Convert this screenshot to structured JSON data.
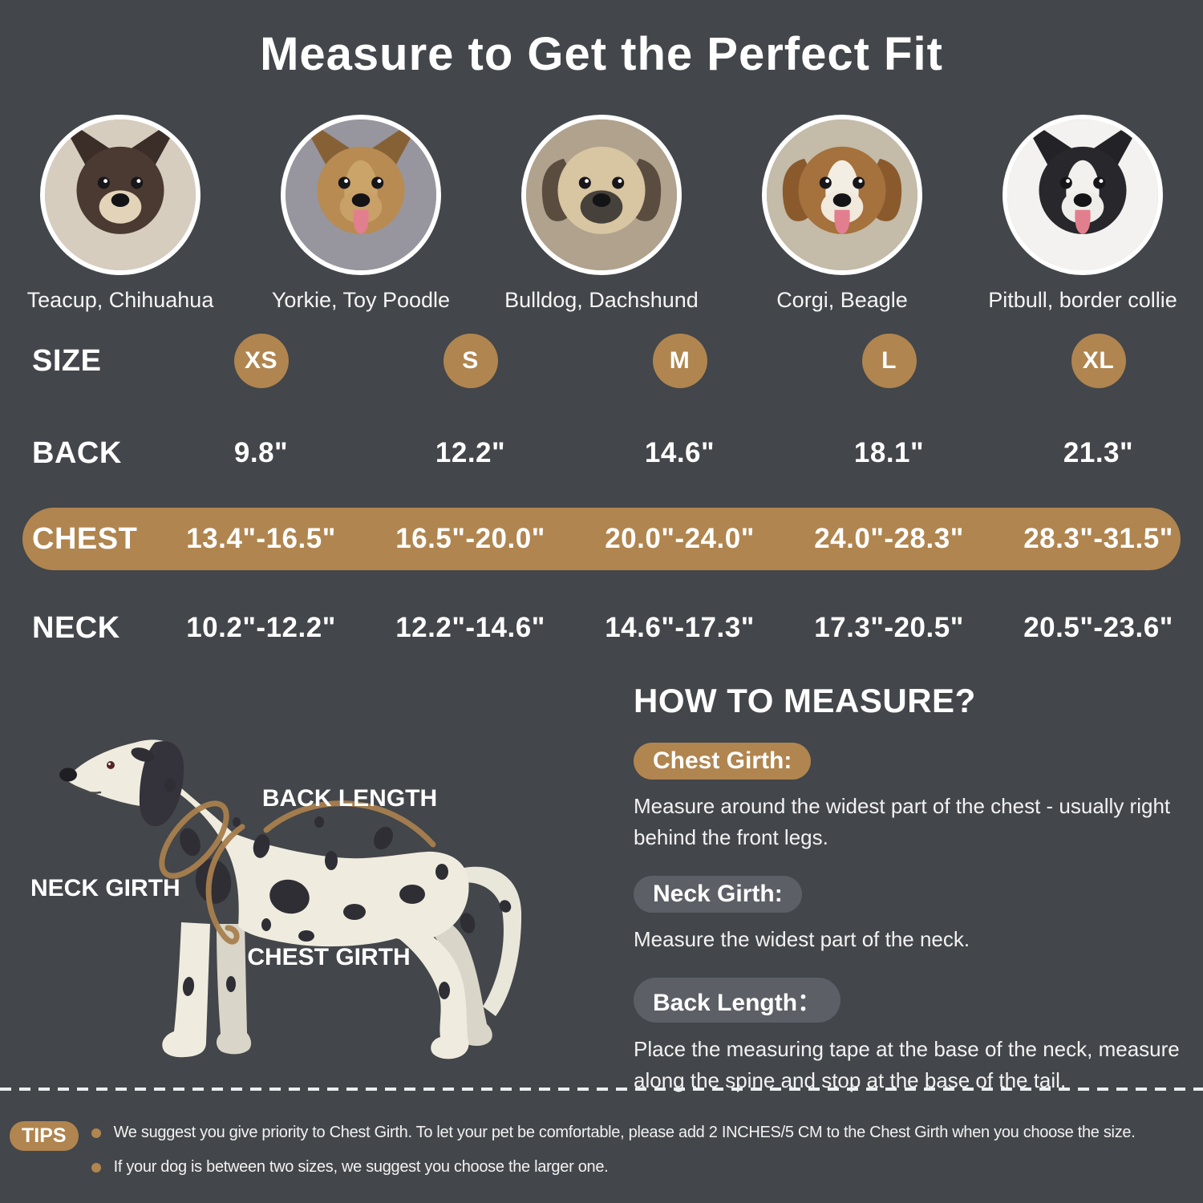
{
  "title": "Measure to Get the Perfect Fit",
  "colors": {
    "background": "#43464a",
    "accent_brown": "#b0854f",
    "pill_gray": "#5c6066",
    "measure_line_brown": "#a87f4e",
    "text": "#ffffff"
  },
  "photos": {
    "items": [
      {
        "label": "Teacup, Chihuahua",
        "palette": {
          "bg": "#d7cdbf",
          "ear": "#3b2e28",
          "head": "#4a3a31",
          "blaze": "",
          "muzzle": "#e3d3b8",
          "ear_style": "up",
          "tongue": false
        }
      },
      {
        "label": "Yorkie, Toy Poodle",
        "palette": {
          "bg": "#97969e",
          "ear": "#876136",
          "head": "#b78b52",
          "blaze": "#caa469",
          "muzzle": "#c9a168",
          "ear_style": "up",
          "tongue": true
        }
      },
      {
        "label": "Bulldog, Dachshund",
        "palette": {
          "bg": "#b0a28d",
          "ear": "#5a4c3f",
          "head": "#d8c5a1",
          "blaze": "",
          "muzzle": "#46413a",
          "ear_style": "floppy",
          "tongue": false
        }
      },
      {
        "label": "Corgi, Beagle",
        "palette": {
          "bg": "#c4bba8",
          "ear": "#8a5a2d",
          "head": "#a5713c",
          "blaze": "#f3eee3",
          "muzzle": "#f0e9dc",
          "ear_style": "floppy",
          "tongue": true
        }
      },
      {
        "label": "Pitbull, border collie",
        "palette": {
          "bg": "#f3f2f0",
          "ear": "#222227",
          "head": "#28272c",
          "blaze": "#f2f1ee",
          "muzzle": "#eeede9",
          "ear_style": "up",
          "tongue": true
        }
      }
    ]
  },
  "table": {
    "size": {
      "label": "SIZE",
      "values": [
        "XS",
        "S",
        "M",
        "L",
        "XL"
      ]
    },
    "back": {
      "label": "BACK",
      "values": [
        "9.8\"",
        "12.2\"",
        "14.6\"",
        "18.1\"",
        "21.3\""
      ]
    },
    "chest": {
      "label": "CHEST",
      "values": [
        "13.4\"-16.5\"",
        "16.5\"-20.0\"",
        "20.0\"-24.0\"",
        "24.0\"-28.3\"",
        "28.3\"-31.5\""
      ]
    },
    "neck": {
      "label": "NECK",
      "values": [
        "10.2\"-12.2\"",
        "12.2\"-14.6\"",
        "14.6\"-17.3\"",
        "17.3\"-20.5\"",
        "20.5\"-23.6\""
      ]
    }
  },
  "diagram": {
    "back_length": "BACK LENGTH",
    "neck_girth": "NECK GIRTH",
    "chest_girth": "CHEST GIRTH"
  },
  "how_to_measure": {
    "heading": "HOW TO MEASURE?",
    "sections": [
      {
        "badge": "Chest Girth:",
        "text": "Measure around the widest part of the chest - usually right behind the front legs."
      },
      {
        "badge": "Neck Girth:",
        "text": "Measure the widest part of the neck."
      },
      {
        "badge": "Back Length：",
        "text": "Place the measuring tape at the base of the neck, measure along the spine and stop at the base of the tail."
      }
    ]
  },
  "tips": {
    "badge": "TIPS",
    "items": [
      "We suggest you give priority to Chest Girth. To let your pet be comfortable, please add 2 INCHES/5 CM to the Chest Girth when you choose the size.",
      "If your dog is between two sizes, we suggest you choose the larger one."
    ]
  }
}
